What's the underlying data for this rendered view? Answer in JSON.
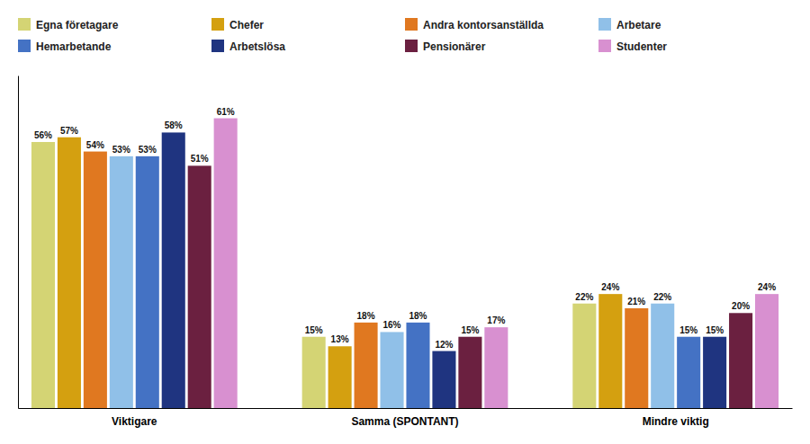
{
  "chart_data": {
    "type": "bar",
    "categories": [
      "Viktigare",
      "Samma (SPONTANT)",
      "Mindre viktig"
    ],
    "series": [
      {
        "name": "Egna företagare",
        "color": "#d4d474",
        "values": [
          56,
          15,
          22
        ],
        "value_labels": [
          "56%",
          "15%",
          "22%"
        ]
      },
      {
        "name": "Chefer",
        "color": "#d4a010",
        "values": [
          57,
          13,
          24
        ],
        "value_labels": [
          "57%",
          "13%",
          "24%"
        ]
      },
      {
        "name": "Andra kontorsanställda",
        "color": "#e07820",
        "values": [
          54,
          18,
          21
        ],
        "value_labels": [
          "54%",
          "18%",
          "21%"
        ]
      },
      {
        "name": "Arbetare",
        "color": "#90c0e8",
        "values": [
          53,
          16,
          22
        ],
        "value_labels": [
          "53%",
          "16%",
          "22%"
        ]
      },
      {
        "name": "Hemarbetande",
        "color": "#4472c4",
        "values": [
          53,
          18,
          15
        ],
        "value_labels": [
          "53%",
          "18%",
          "15%"
        ]
      },
      {
        "name": "Arbetslösa",
        "color": "#1f3480",
        "values": [
          58,
          12,
          15
        ],
        "value_labels": [
          "58%",
          "12%",
          "15%"
        ]
      },
      {
        "name": "Pensionärer",
        "color": "#6b2040",
        "values": [
          51,
          15,
          20
        ],
        "value_labels": [
          "51%",
          "15%",
          "20%"
        ]
      },
      {
        "name": "Studenter",
        "color": "#d890d0",
        "values": [
          61,
          17,
          24
        ],
        "value_labels": [
          "61%",
          "17%",
          "24%"
        ]
      }
    ],
    "ylim": [
      0,
      70
    ],
    "grid": false,
    "legend": "top",
    "data_labels": true,
    "tick_labels": "x"
  }
}
